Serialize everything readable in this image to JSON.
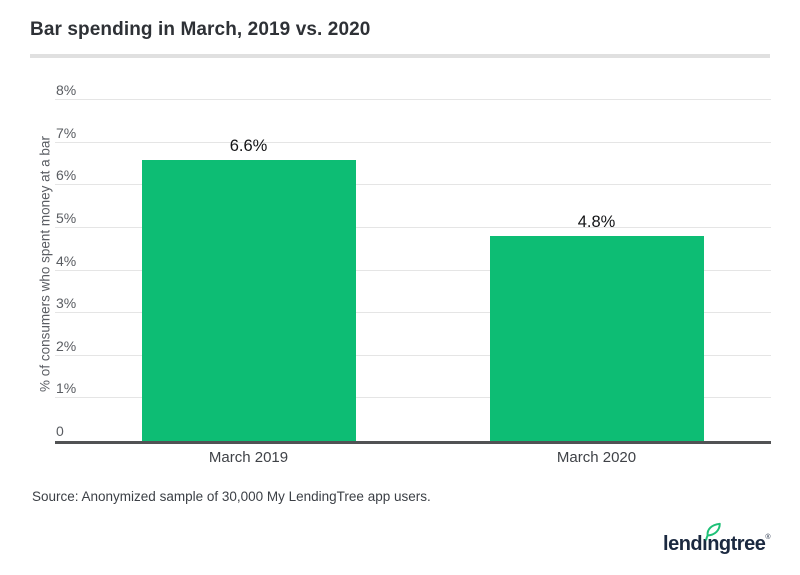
{
  "title": "Bar spending in March, 2019 vs. 2020",
  "source_note": "Source: Anonymized sample of 30,000 My LendingTree app users.",
  "logo": {
    "text": "lendingtree",
    "registered_mark": "®",
    "leaf_icon": "leaf-icon"
  },
  "colors": {
    "bar": "#0dbd74",
    "axis_line": "#515254",
    "gridline": "#e5e5e5",
    "title_text": "#2e3136",
    "tick_text": "#595c61",
    "value_label_text": "#131416",
    "logo_navy": "#1b2940",
    "leaf_green": "#1ec077",
    "divider": "#e0e0e0"
  },
  "chart_data": {
    "type": "bar",
    "title": "Bar spending in March, 2019 vs. 2020",
    "categories": [
      "March 2019",
      "March 2020"
    ],
    "values": [
      6.6,
      4.8
    ],
    "value_labels": [
      "6.6%",
      "4.8%"
    ],
    "xlabel": "",
    "ylabel": "% of consumers who spent money at a bar",
    "ylim": [
      0,
      8
    ],
    "ytick_step": 1,
    "ytick_labels": [
      "0",
      "1%",
      "2%",
      "3%",
      "4%",
      "5%",
      "6%",
      "7%",
      "8%"
    ],
    "grid": true,
    "legend": false,
    "bar_color": "#0dbd74"
  }
}
